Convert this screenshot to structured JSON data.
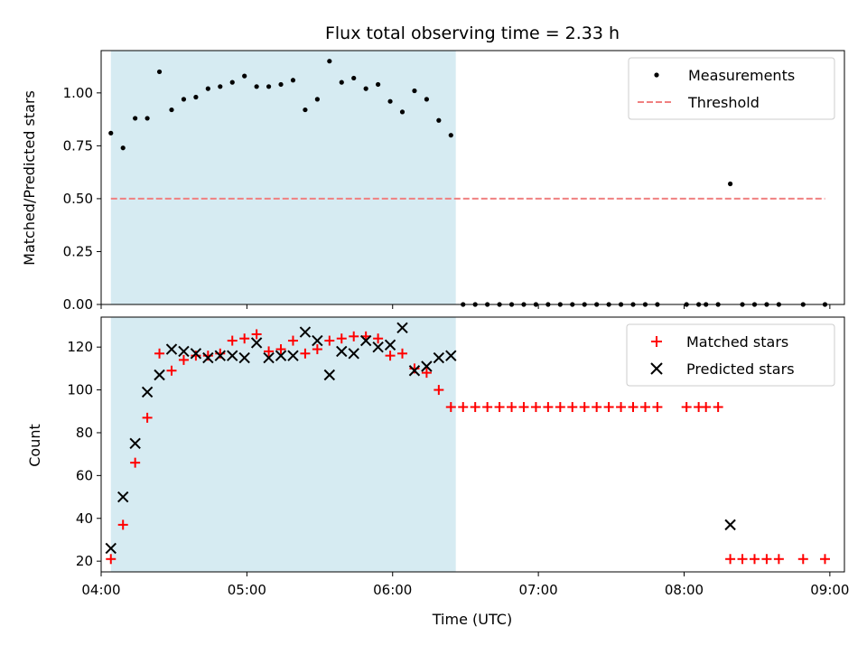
{
  "chart_data": [
    {
      "type": "scatter",
      "title": "Flux total observing time = 2.33 h",
      "ylabel": "Matched/Predicted stars",
      "xlabel": "",
      "xlim": [
        "04:00",
        "09:06"
      ],
      "ylim": [
        0,
        1.2
      ],
      "yticks": [
        "0.00",
        "0.25",
        "0.50",
        "0.75",
        "1.00"
      ],
      "legend": "top-right",
      "shaded_span": [
        "04:04",
        "06:26"
      ],
      "threshold": {
        "name": "Threshold",
        "y": 0.5,
        "x": [
          "04:04",
          "08:58"
        ],
        "color": "#f08080"
      },
      "series": [
        {
          "name": "Measurements",
          "color": "#000000",
          "x": [
            "04:04",
            "04:09",
            "04:14",
            "04:19",
            "04:24",
            "04:29",
            "04:34",
            "04:39",
            "04:44",
            "04:49",
            "04:54",
            "04:59",
            "05:04",
            "05:09",
            "05:14",
            "05:19",
            "05:24",
            "05:29",
            "05:34",
            "05:39",
            "05:44",
            "05:49",
            "05:54",
            "05:59",
            "06:04",
            "06:09",
            "06:14",
            "06:19",
            "06:24",
            "06:29",
            "06:34",
            "06:39",
            "06:44",
            "06:49",
            "06:54",
            "06:59",
            "07:04",
            "07:09",
            "07:14",
            "07:19",
            "07:24",
            "07:29",
            "07:34",
            "07:39",
            "07:44",
            "07:49",
            "08:01",
            "08:06",
            "08:09",
            "08:14",
            "08:19",
            "08:24",
            "08:29",
            "08:34",
            "08:39",
            "08:49",
            "08:58"
          ],
          "y": [
            0.81,
            0.74,
            0.88,
            0.88,
            1.1,
            0.92,
            0.97,
            0.98,
            1.02,
            1.03,
            1.05,
            1.08,
            1.03,
            1.03,
            1.04,
            1.06,
            0.92,
            0.97,
            1.15,
            1.05,
            1.07,
            1.02,
            1.04,
            0.96,
            0.91,
            1.01,
            0.97,
            0.87,
            0.8,
            0.0,
            0.0,
            0.0,
            0.0,
            0.0,
            0.0,
            0.0,
            0.0,
            0.0,
            0.0,
            0.0,
            0.0,
            0.0,
            0.0,
            0.0,
            0.0,
            0.0,
            0.0,
            0.0,
            0.0,
            0.0,
            0.57,
            0.0,
            0.0,
            0.0,
            0.0,
            0.0,
            0.0
          ]
        }
      ]
    },
    {
      "type": "scatter",
      "title": "",
      "ylabel": "Count",
      "xlabel": "Time (UTC)",
      "xlim": [
        "04:00",
        "09:06"
      ],
      "ylim": [
        15,
        134
      ],
      "xticks": [
        "04:00",
        "05:00",
        "06:00",
        "07:00",
        "08:00",
        "09:00"
      ],
      "yticks": [
        "20",
        "40",
        "60",
        "80",
        "100",
        "120"
      ],
      "legend": "top-right",
      "shaded_span": [
        "04:04",
        "06:26"
      ],
      "series": [
        {
          "name": "Matched stars",
          "marker": "plus",
          "color": "#ff0000",
          "x": [
            "04:04",
            "04:09",
            "04:14",
            "04:19",
            "04:24",
            "04:29",
            "04:34",
            "04:39",
            "04:44",
            "04:49",
            "04:54",
            "04:59",
            "05:04",
            "05:09",
            "05:14",
            "05:19",
            "05:24",
            "05:29",
            "05:34",
            "05:39",
            "05:44",
            "05:49",
            "05:54",
            "05:59",
            "06:04",
            "06:09",
            "06:14",
            "06:19",
            "06:24",
            "06:29",
            "06:34",
            "06:39",
            "06:44",
            "06:49",
            "06:54",
            "06:59",
            "07:04",
            "07:09",
            "07:14",
            "07:19",
            "07:24",
            "07:29",
            "07:34",
            "07:39",
            "07:44",
            "07:49",
            "08:01",
            "08:06",
            "08:09",
            "08:14",
            "08:19",
            "08:24",
            "08:29",
            "08:34",
            "08:39",
            "08:49",
            "08:58"
          ],
          "y": [
            21,
            37,
            66,
            87,
            117,
            109,
            114,
            116,
            116,
            117,
            123,
            124,
            126,
            118,
            119,
            123,
            117,
            119,
            123,
            124,
            125,
            125,
            124,
            116,
            117,
            110,
            108,
            100,
            92,
            92,
            92,
            92,
            92,
            92,
            92,
            92,
            92,
            92,
            92,
            92,
            92,
            92,
            92,
            92,
            92,
            92,
            92,
            92,
            92,
            92,
            21,
            21,
            21,
            21,
            21,
            21,
            21
          ]
        },
        {
          "name": "Predicted stars",
          "marker": "x",
          "color": "#000000",
          "x": [
            "04:04",
            "04:09",
            "04:14",
            "04:19",
            "04:24",
            "04:29",
            "04:34",
            "04:39",
            "04:44",
            "04:49",
            "04:54",
            "04:59",
            "05:04",
            "05:09",
            "05:14",
            "05:19",
            "05:24",
            "05:29",
            "05:34",
            "05:39",
            "05:44",
            "05:49",
            "05:54",
            "05:59",
            "06:04",
            "06:09",
            "06:14",
            "06:19",
            "06:24",
            "08:19"
          ],
          "y": [
            26,
            50,
            75,
            99,
            107,
            119,
            118,
            117,
            115,
            116,
            116,
            115,
            122,
            115,
            116,
            116,
            127,
            123,
            107,
            118,
            117,
            123,
            120,
            121,
            129,
            109,
            111,
            115,
            116,
            37
          ]
        }
      ]
    }
  ]
}
